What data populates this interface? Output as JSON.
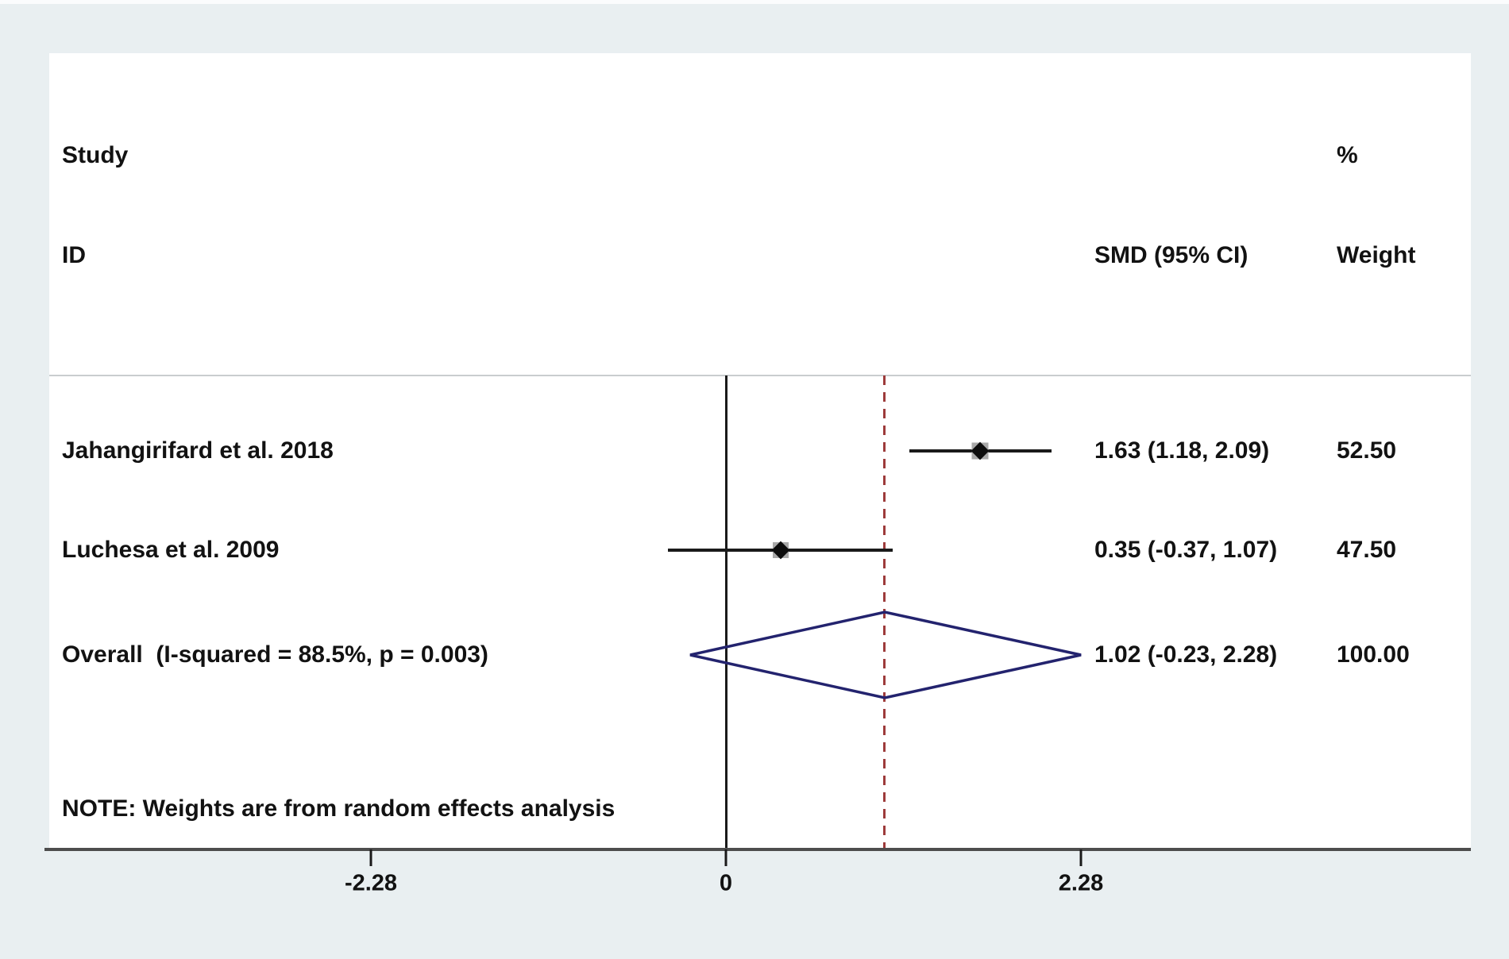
{
  "chart_data": {
    "type": "forest",
    "title": "",
    "headers": {
      "study_line1": "Study",
      "study_line2": "ID",
      "pct": "%",
      "effect": "SMD (95% CI)",
      "weight": "Weight"
    },
    "x_axis": {
      "ticks": [
        -2.28,
        0,
        2.28
      ],
      "tick_labels": [
        "-2.28",
        "0",
        "2.28"
      ],
      "zero_line_at": 0,
      "dashed_line_at": 1.02,
      "xlim": [
        -2.28,
        2.28
      ]
    },
    "studies": [
      {
        "id": "Jahangirifard et al. 2018",
        "estimate": 1.63,
        "ci_low": 1.18,
        "ci_high": 2.09,
        "effect_label": "1.63 (1.18, 2.09)",
        "weight": 52.5,
        "weight_label": "52.50"
      },
      {
        "id": "Luchesa et al. 2009",
        "estimate": 0.35,
        "ci_low": -0.37,
        "ci_high": 1.07,
        "effect_label": "0.35 (-0.37, 1.07)",
        "weight": 47.5,
        "weight_label": "47.50"
      }
    ],
    "overall": {
      "id": "Overall  (I-squared = 88.5%, p = 0.003)",
      "estimate": 1.02,
      "ci_low": -0.23,
      "ci_high": 2.28,
      "effect_label": "1.02 (-0.23, 2.28)",
      "weight": 100.0,
      "weight_label": "100.00"
    },
    "note": "NOTE: Weights are from random effects analysis",
    "legend": "grid off",
    "colors": {
      "background": "#e9eff1",
      "plot_background": "#ffffff",
      "diamond_outline": "#23236e",
      "dashed_line": "#9d3b3b",
      "axis_line": "#4d4d4d",
      "ci_line": "#1a1a1a",
      "point_marker": "#0d0d0d",
      "weight_box": "#a9a9a9",
      "text": "#121212"
    }
  }
}
